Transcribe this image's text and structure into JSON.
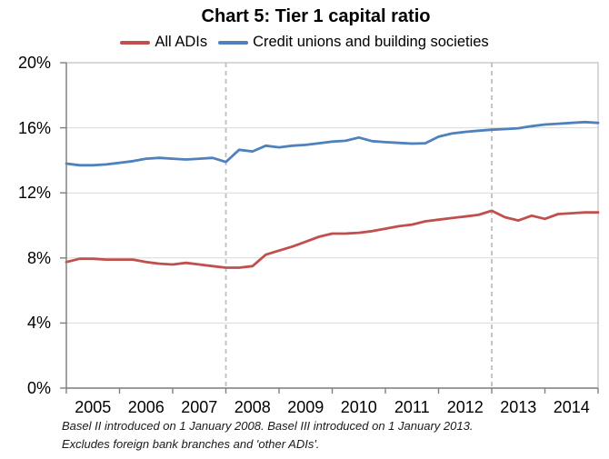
{
  "chart_data": {
    "type": "line",
    "title": "Chart 5: Tier 1 capital ratio",
    "xlabel": "",
    "ylabel": "",
    "xlim": [
      2005,
      2015
    ],
    "ylim": [
      0,
      20
    ],
    "grid": "horizontal",
    "legend_position": "top",
    "x": [
      2005.0,
      2005.25,
      2005.5,
      2005.75,
      2006.0,
      2006.25,
      2006.5,
      2006.75,
      2007.0,
      2007.25,
      2007.5,
      2007.75,
      2008.0,
      2008.25,
      2008.5,
      2008.75,
      2009.0,
      2009.25,
      2009.5,
      2009.75,
      2010.0,
      2010.25,
      2010.5,
      2010.75,
      2011.0,
      2011.25,
      2011.5,
      2011.75,
      2012.0,
      2012.25,
      2012.5,
      2012.75,
      2013.0,
      2013.25,
      2013.5,
      2013.75,
      2014.0,
      2014.25,
      2014.5,
      2014.75,
      2015.0
    ],
    "series": [
      {
        "name": "All ADIs",
        "color": "#C0504D",
        "values": [
          7.75,
          7.95,
          7.95,
          7.9,
          7.9,
          7.9,
          7.75,
          7.65,
          7.6,
          7.7,
          7.6,
          7.5,
          7.4,
          7.4,
          7.5,
          8.2,
          8.45,
          8.7,
          9.0,
          9.3,
          9.5,
          9.5,
          9.55,
          9.65,
          9.8,
          9.95,
          10.05,
          10.25,
          10.35,
          10.45,
          10.55,
          10.65,
          10.9,
          10.5,
          10.3,
          10.6,
          10.4,
          10.7,
          10.75,
          10.8,
          10.8
        ]
      },
      {
        "name": "Credit unions and building societies",
        "color": "#4F81BD",
        "values": [
          13.8,
          13.7,
          13.7,
          13.75,
          13.85,
          13.95,
          14.1,
          14.15,
          14.1,
          14.05,
          14.1,
          14.15,
          13.9,
          14.65,
          14.55,
          14.9,
          14.8,
          14.9,
          14.95,
          15.05,
          15.15,
          15.2,
          15.4,
          15.18,
          15.12,
          15.07,
          15.03,
          15.05,
          15.45,
          15.65,
          15.75,
          15.82,
          15.88,
          15.92,
          15.97,
          16.1,
          16.2,
          16.25,
          16.3,
          16.35,
          16.3
        ]
      }
    ],
    "y_tick_values": [
      20,
      16,
      12,
      8,
      4,
      0
    ],
    "y_tick_labels": [
      "20%",
      "16%",
      "12%",
      "8%",
      "4%",
      "0%"
    ],
    "x_tick_labels": [
      "2005",
      "2006",
      "2007",
      "2008",
      "2009",
      "2010",
      "2011",
      "2012",
      "2013",
      "2014"
    ],
    "vlines": [
      2008,
      2013
    ],
    "footnotes": [
      "Basel II introduced on 1 January 2008. Basel III introduced on 1 January 2013.",
      "Excludes foreign bank branches and 'other ADIs'."
    ],
    "colors": {
      "gridline": "#d9d9d9",
      "plot_border": "#bfbfbf",
      "axis": "#7f7f7f",
      "reference_line": "#bfbfbf"
    }
  }
}
